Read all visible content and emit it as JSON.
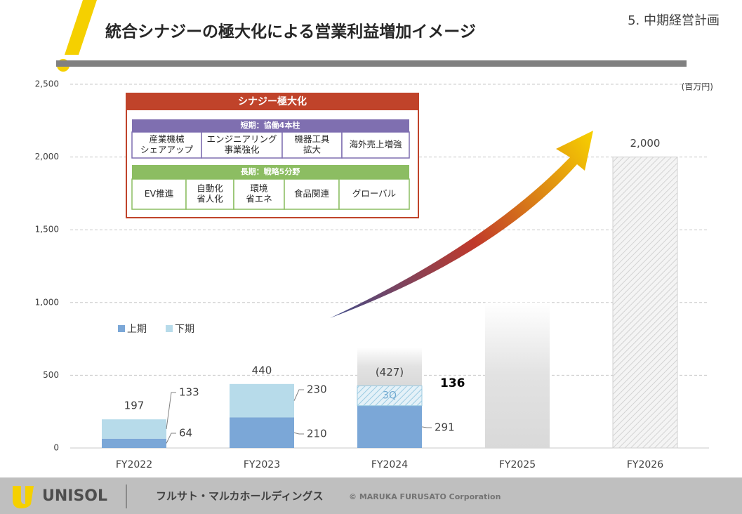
{
  "header": {
    "title": "統合シナジーの極大化による営業利益増加イメージ",
    "section": "5. 中期経営計画"
  },
  "chart_data": {
    "type": "bar",
    "stacked": true,
    "unit": "(百万円)",
    "categories": [
      "FY2022",
      "FY2023",
      "FY2024",
      "FY2025",
      "FY2026"
    ],
    "series": [
      {
        "name": "上期",
        "color": "#7ba7d7",
        "values": [
          64,
          210,
          291,
          null,
          null
        ]
      },
      {
        "name": "下期",
        "color": "#b7dbea",
        "values": [
          133,
          230,
          null,
          null,
          null
        ]
      },
      {
        "name": "3Q",
        "color": "#b7dbea",
        "hatched": true,
        "legend": false,
        "values": [
          null,
          null,
          136,
          null,
          null
        ]
      }
    ],
    "totals": {
      "values": [
        197,
        440,
        427,
        null,
        2000
      ],
      "value_labels": [
        "197",
        "440",
        "(427)",
        null,
        "2,000"
      ]
    },
    "outlook": {
      "color": "#d9d9d9",
      "values": [
        null,
        null,
        null,
        1000,
        2000
      ],
      "hatched": [
        false,
        false,
        false,
        false,
        true
      ]
    },
    "ylim": [
      0,
      2500
    ],
    "yticks": [
      0,
      500,
      {
        "value": 1000,
        "label": "1,000"
      },
      {
        "value": 1500,
        "label": "1,500"
      },
      {
        "value": 2000,
        "label": "2,000"
      },
      {
        "value": 2500,
        "label": "2,500"
      }
    ],
    "grid": true,
    "legend": "middle-left"
  },
  "synergy": {
    "title": "シナジー極大化",
    "short": {
      "title": "短期：協働4本柱",
      "items": [
        [
          "産業機械",
          "シェアアップ"
        ],
        [
          "エンジニアリング",
          "事業強化"
        ],
        [
          "機器工具",
          "拡大"
        ],
        [
          "海外売上増強"
        ]
      ]
    },
    "long": {
      "title": "長期：戦略5分野",
      "items": [
        [
          "EV推進"
        ],
        [
          "自動化",
          "省人化"
        ],
        [
          "環境",
          "省エネ"
        ],
        [
          "食品関連"
        ],
        [
          "グローバル"
        ]
      ]
    }
  },
  "footer": {
    "brand": "UNISOL",
    "company": "フルサト・マルカホールディングス",
    "copyright": "© MARUKA FURUSATO Corporation"
  }
}
